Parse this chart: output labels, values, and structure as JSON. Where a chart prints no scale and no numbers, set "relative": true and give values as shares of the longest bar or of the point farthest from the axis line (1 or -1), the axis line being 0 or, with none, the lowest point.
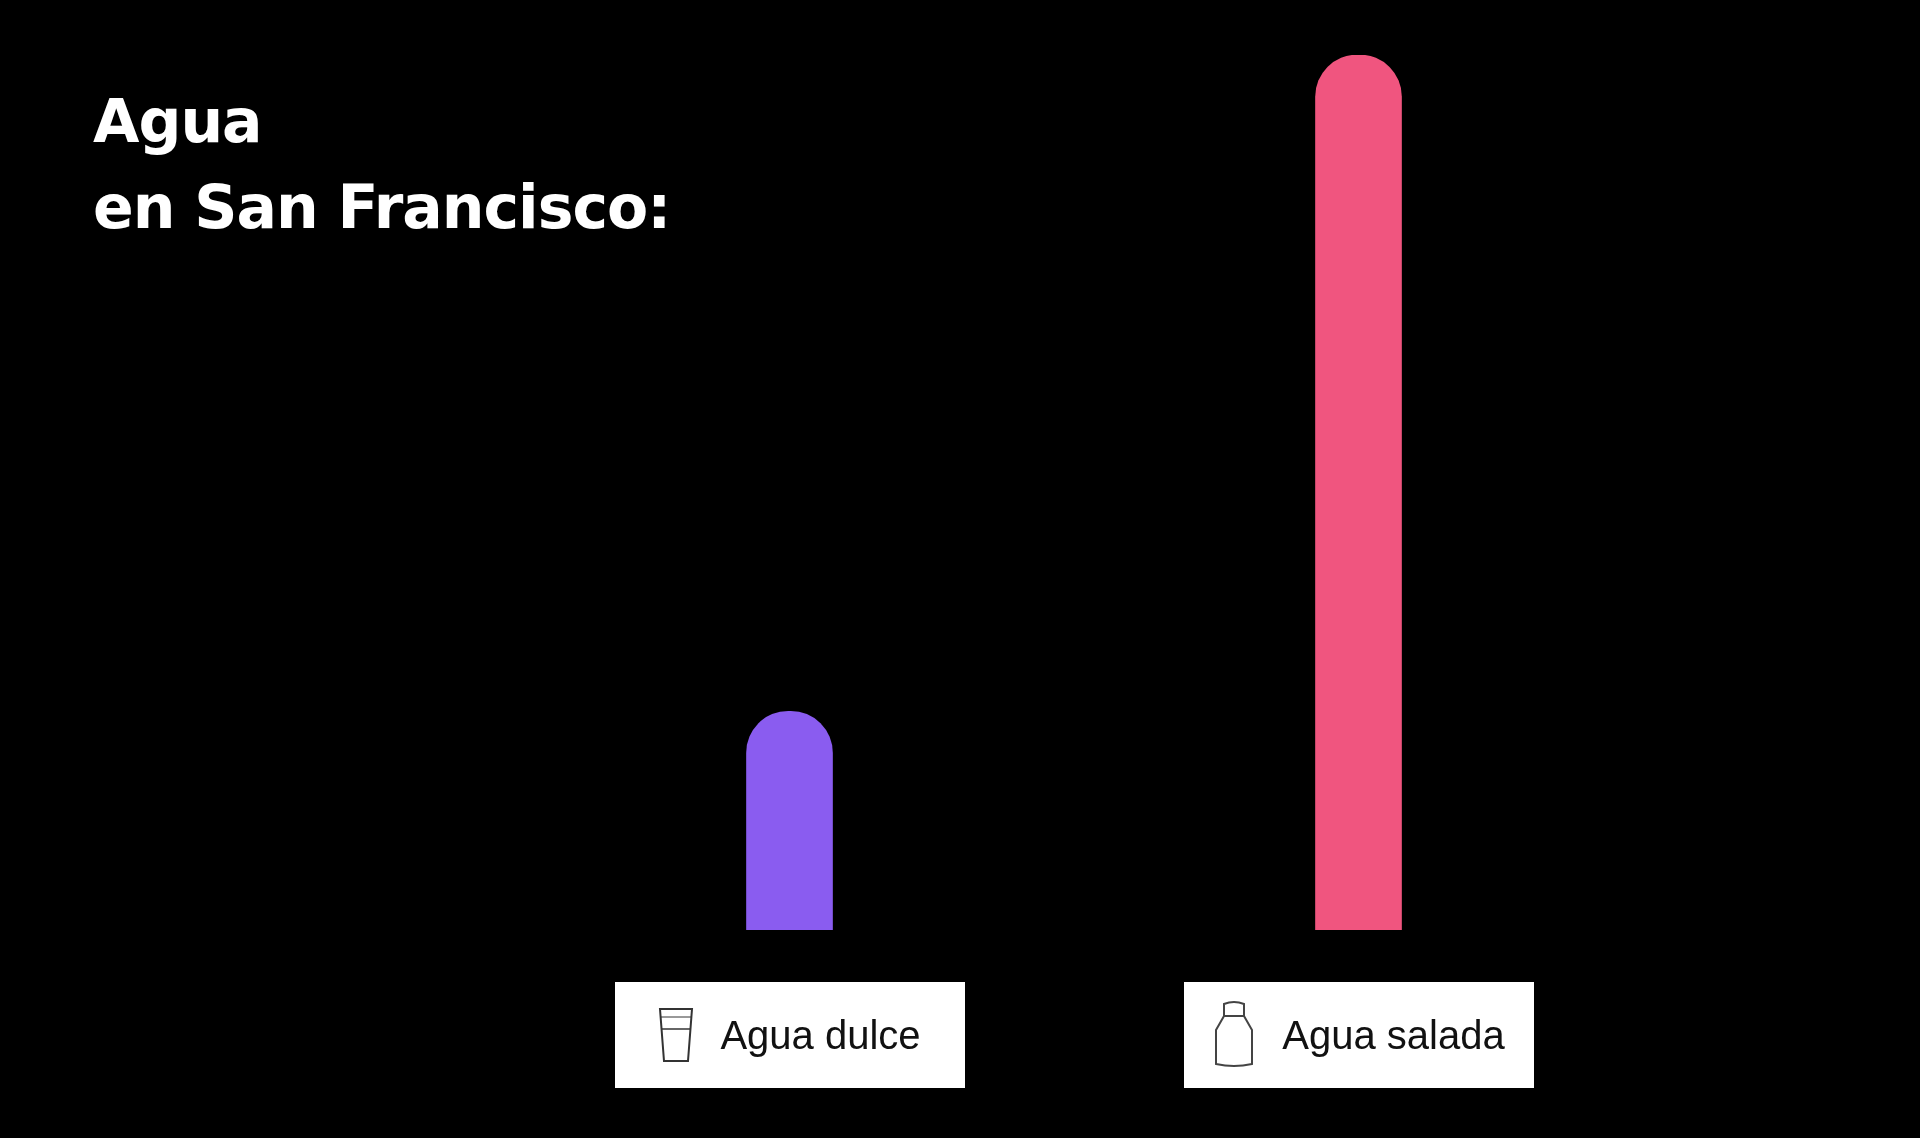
{
  "chart_data": {
    "type": "bar",
    "title": "Agua\nen San Francisco:",
    "categories": [
      "Agua dulce",
      "Agua salada"
    ],
    "values": [
      0.25,
      1
    ],
    "colors": [
      "#8a5cf0",
      "#f0557f"
    ],
    "relative": true,
    "legend": false
  }
}
